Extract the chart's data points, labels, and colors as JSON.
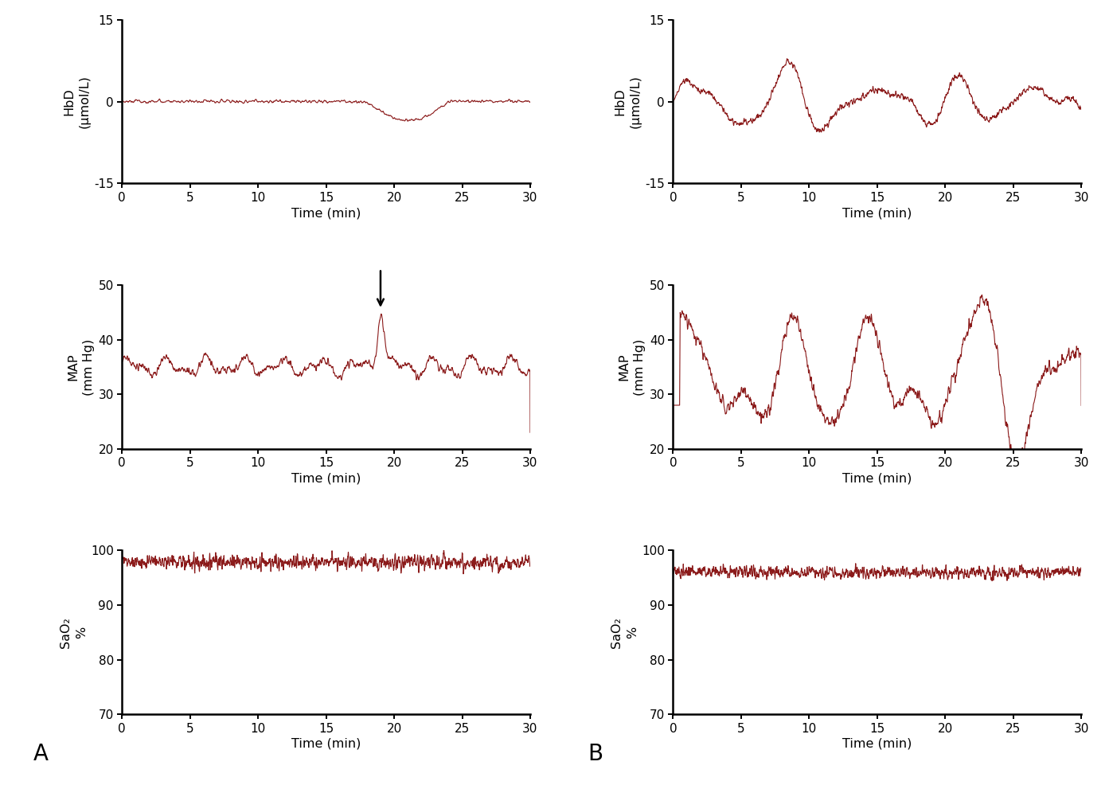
{
  "line_color": "#8B1A1A",
  "line_width": 0.8,
  "bg_color": "#ffffff",
  "time_min": 0,
  "time_max": 30,
  "n_points": 3000,
  "xlabel": "Time (min)",
  "xticks": [
    0,
    5,
    10,
    15,
    20,
    25,
    30
  ],
  "HbD_ylim": [
    -15,
    15
  ],
  "HbD_yticks": [
    -15,
    0,
    15
  ],
  "MAP_ylim": [
    20,
    50
  ],
  "MAP_yticks": [
    20,
    30,
    40,
    50
  ],
  "SaO2_ylim": [
    70,
    100
  ],
  "SaO2_yticks": [
    70,
    80,
    90,
    100
  ],
  "HbD_ylabel": "HbD\n(μmol/L)",
  "MAP_ylabel": "MAP\n(mm Hg)",
  "SaO2_ylabel": "SaO₂\n%",
  "label_A": "A",
  "label_B": "B",
  "seed": 99
}
